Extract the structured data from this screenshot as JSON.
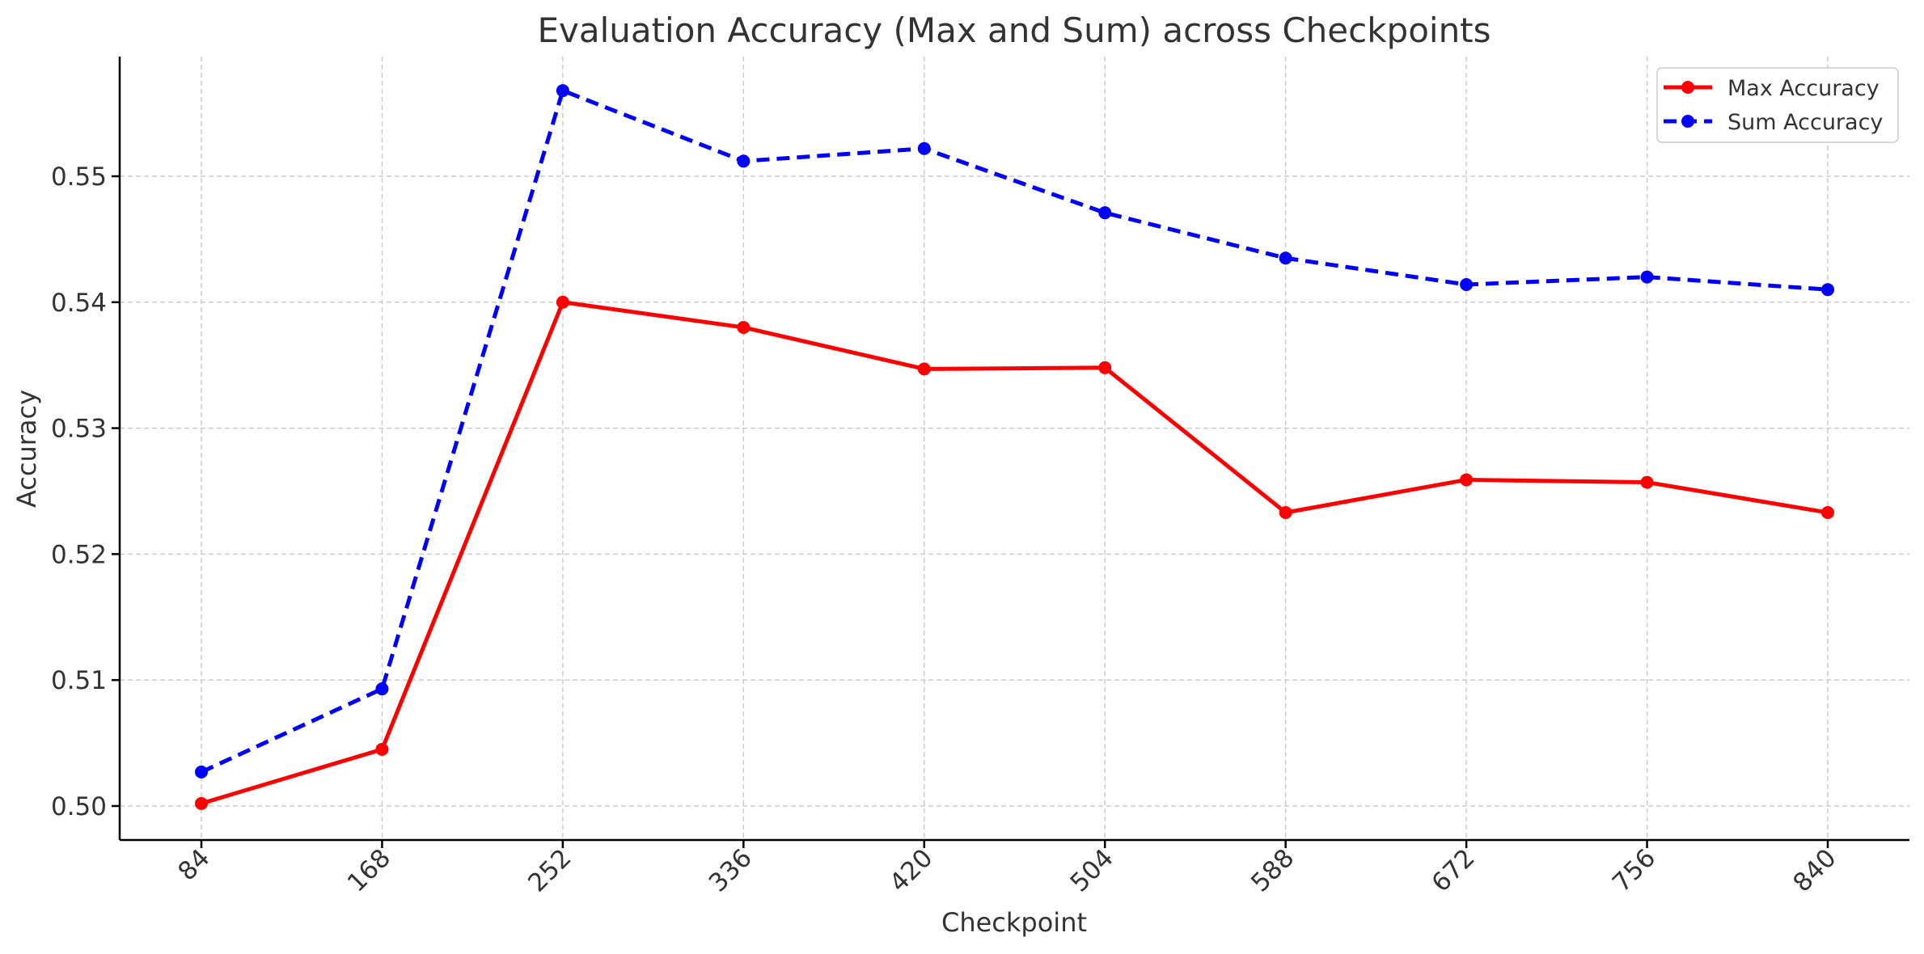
{
  "chart_data": {
    "type": "line",
    "title": "Evaluation Accuracy (Max and Sum) across Checkpoints",
    "xlabel": "Checkpoint",
    "ylabel": "Accuracy",
    "categories": [
      "84",
      "168",
      "252",
      "336",
      "420",
      "504",
      "588",
      "672",
      "756",
      "840"
    ],
    "yticks": [
      "0.50",
      "0.51",
      "0.52",
      "0.53",
      "0.54",
      "0.55"
    ],
    "ylim": [
      0.4973,
      0.5595
    ],
    "grid": true,
    "legend_position": "top-right",
    "series": [
      {
        "name": "Max Accuracy",
        "color": "#ff0000",
        "line_style": "solid",
        "marker": "circle",
        "values": [
          0.5002,
          0.5045,
          0.54,
          0.538,
          0.5347,
          0.5348,
          0.5233,
          0.5259,
          0.5257,
          0.5233
        ]
      },
      {
        "name": "Sum Accuracy",
        "color": "#0000ff",
        "line_style": "dashed",
        "marker": "circle",
        "values": [
          0.5027,
          0.5093,
          0.5568,
          0.5512,
          0.5522,
          0.5471,
          0.5435,
          0.5414,
          0.542,
          0.541
        ]
      }
    ]
  }
}
